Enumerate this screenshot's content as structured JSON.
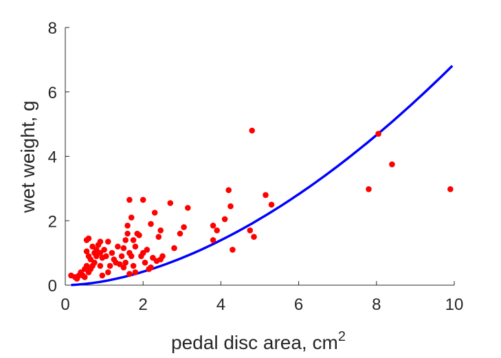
{
  "chart_data": {
    "type": "scatter",
    "xlabel": "pedal disc area, cm",
    "xlabel_superscript": "2",
    "ylabel": "wet weight, g",
    "xlim": [
      0,
      10
    ],
    "ylim": [
      0,
      8
    ],
    "xticks": [
      0,
      2,
      4,
      6,
      8,
      10
    ],
    "yticks": [
      0,
      2,
      4,
      6,
      8
    ],
    "grid": false,
    "colors": {
      "points": "#ff0000",
      "curve": "#0000ff",
      "axis": "#262626"
    },
    "series": [
      {
        "kind": "scatter",
        "points": [
          [
            0.15,
            0.3
          ],
          [
            0.25,
            0.25
          ],
          [
            0.3,
            0.2
          ],
          [
            0.35,
            0.3
          ],
          [
            0.4,
            0.4
          ],
          [
            0.45,
            0.3
          ],
          [
            0.5,
            0.5
          ],
          [
            0.5,
            0.25
          ],
          [
            0.55,
            0.6
          ],
          [
            0.6,
            0.4
          ],
          [
            0.65,
            0.5
          ],
          [
            0.7,
            0.6
          ],
          [
            0.55,
            1.4
          ],
          [
            0.6,
            1.45
          ],
          [
            0.55,
            1.05
          ],
          [
            0.6,
            0.9
          ],
          [
            0.65,
            0.8
          ],
          [
            0.7,
            1.2
          ],
          [
            0.75,
            1.0
          ],
          [
            0.75,
            0.7
          ],
          [
            0.8,
            1.1
          ],
          [
            0.8,
            0.9
          ],
          [
            0.85,
            1.25
          ],
          [
            0.9,
            1.0
          ],
          [
            0.9,
            0.6
          ],
          [
            0.9,
            1.35
          ],
          [
            0.95,
            0.85
          ],
          [
            0.95,
            0.3
          ],
          [
            1.0,
            1.1
          ],
          [
            1.05,
            0.9
          ],
          [
            1.1,
            0.4
          ],
          [
            1.1,
            1.35
          ],
          [
            1.15,
            0.6
          ],
          [
            1.2,
            1.0
          ],
          [
            1.25,
            0.8
          ],
          [
            1.3,
            0.7
          ],
          [
            1.35,
            1.2
          ],
          [
            1.4,
            0.65
          ],
          [
            1.45,
            0.9
          ],
          [
            1.5,
            0.55
          ],
          [
            1.5,
            1.15
          ],
          [
            1.55,
            1.4
          ],
          [
            1.55,
            0.7
          ],
          [
            1.6,
            1.6
          ],
          [
            1.6,
            1.85
          ],
          [
            1.65,
            1.0
          ],
          [
            1.65,
            0.35
          ],
          [
            1.7,
            0.9
          ],
          [
            1.7,
            2.1
          ],
          [
            1.75,
            1.4
          ],
          [
            1.75,
            0.6
          ],
          [
            1.8,
            1.2
          ],
          [
            1.8,
            0.4
          ],
          [
            1.85,
            1.6
          ],
          [
            1.9,
            1.55
          ],
          [
            1.95,
            0.9
          ],
          [
            2.0,
            1.0
          ],
          [
            2.05,
            0.7
          ],
          [
            2.1,
            1.1
          ],
          [
            2.15,
            0.5
          ],
          [
            2.2,
            0.55
          ],
          [
            2.25,
            0.85
          ],
          [
            2.3,
            2.25
          ],
          [
            2.35,
            0.75
          ],
          [
            2.4,
            1.5
          ],
          [
            2.45,
            1.7
          ],
          [
            2.45,
            0.8
          ],
          [
            2.5,
            0.9
          ],
          [
            1.65,
            2.65
          ],
          [
            2.0,
            2.65
          ],
          [
            2.7,
            2.55
          ],
          [
            2.2,
            1.9
          ],
          [
            2.8,
            1.15
          ],
          [
            2.95,
            1.6
          ],
          [
            3.05,
            1.8
          ],
          [
            3.15,
            2.4
          ],
          [
            3.8,
            1.4
          ],
          [
            3.8,
            1.85
          ],
          [
            3.9,
            1.7
          ],
          [
            4.1,
            2.05
          ],
          [
            4.2,
            2.95
          ],
          [
            4.25,
            2.45
          ],
          [
            4.3,
            1.1
          ],
          [
            4.75,
            1.7
          ],
          [
            4.8,
            4.8
          ],
          [
            4.85,
            1.5
          ],
          [
            5.15,
            2.8
          ],
          [
            5.3,
            2.5
          ],
          [
            7.8,
            2.98
          ],
          [
            8.05,
            4.7
          ],
          [
            8.4,
            3.75
          ],
          [
            9.9,
            2.98
          ]
        ]
      },
      {
        "kind": "line",
        "curve": {
          "form": "power",
          "a": 0.125,
          "b": 1.74
        },
        "x_range": [
          0.15,
          9.95
        ]
      }
    ]
  }
}
